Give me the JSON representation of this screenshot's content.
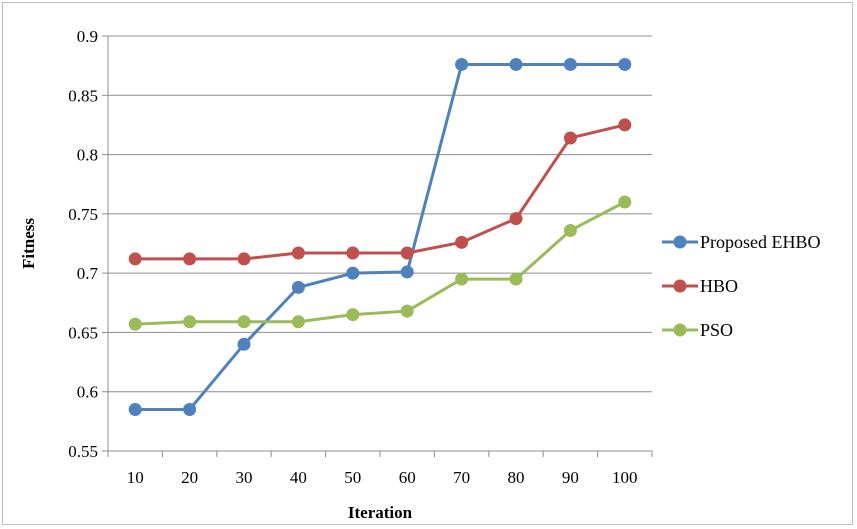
{
  "chart_data": {
    "type": "line",
    "title": "",
    "xlabel": "Iteration",
    "ylabel": "Fitness",
    "x": [
      10,
      20,
      30,
      40,
      50,
      60,
      70,
      80,
      90,
      100
    ],
    "ylim": [
      0.55,
      0.9
    ],
    "yticks": [
      "0.55",
      "0.6",
      "0.65",
      "0.7",
      "0.75",
      "0.8",
      "0.85",
      "0.9"
    ],
    "grid": "horizontal",
    "legend": "right",
    "series": [
      {
        "name": "Proposed EHBO",
        "color": "#4f81bd",
        "values": [
          0.585,
          0.585,
          0.64,
          0.688,
          0.7,
          0.701,
          0.876,
          0.876,
          0.876,
          0.876
        ]
      },
      {
        "name": "HBO",
        "color": "#c0504d",
        "values": [
          0.712,
          0.712,
          0.712,
          0.717,
          0.717,
          0.717,
          0.726,
          0.746,
          0.814,
          0.825
        ]
      },
      {
        "name": "PSO",
        "color": "#9bbb59",
        "values": [
          0.657,
          0.659,
          0.659,
          0.659,
          0.665,
          0.668,
          0.695,
          0.695,
          0.736,
          0.76
        ]
      }
    ]
  }
}
